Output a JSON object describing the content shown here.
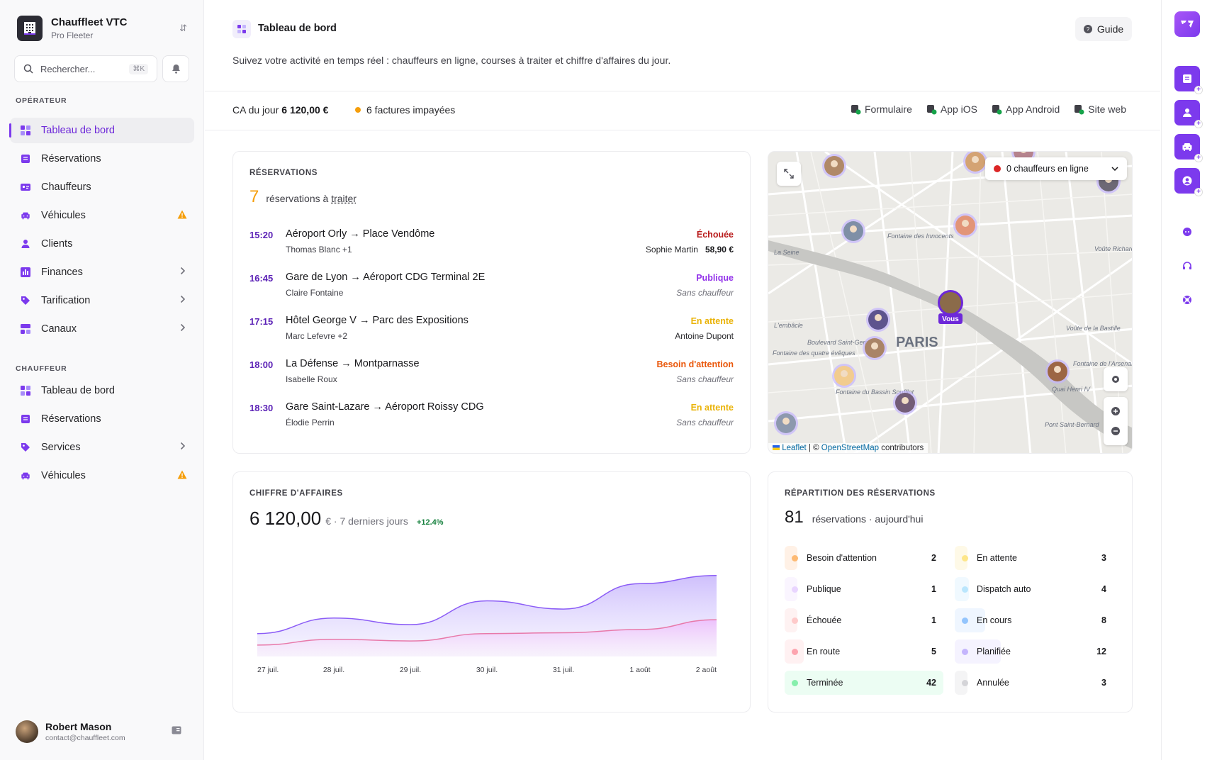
{
  "brand": {
    "name": "Chauffleet VTC",
    "subtitle": "Pro Fleeter"
  },
  "search": {
    "placeholder": "Rechercher...",
    "shortcut": "⌘K"
  },
  "sidebar": {
    "operator_title": "OPÉRATEUR",
    "operator_items": [
      {
        "label": "Tableau de bord",
        "icon": "dashboard-icon",
        "active": true
      },
      {
        "label": "Réservations",
        "icon": "list-icon"
      },
      {
        "label": "Chauffeurs",
        "icon": "id-card-icon"
      },
      {
        "label": "Véhicules",
        "icon": "car-icon",
        "warning": true
      },
      {
        "label": "Clients",
        "icon": "user-icon"
      },
      {
        "label": "Finances",
        "icon": "chart-icon",
        "chevron": true
      },
      {
        "label": "Tarification",
        "icon": "tag-icon",
        "chevron": true
      },
      {
        "label": "Canaux",
        "icon": "channels-icon",
        "chevron": true
      }
    ],
    "driver_title": "CHAUFFEUR",
    "driver_items": [
      {
        "label": "Tableau de bord",
        "icon": "dashboard-icon"
      },
      {
        "label": "Réservations",
        "icon": "list-icon"
      },
      {
        "label": "Services",
        "icon": "tag-icon",
        "chevron": true
      },
      {
        "label": "Véhicules",
        "icon": "car-icon",
        "warning": true
      }
    ]
  },
  "user": {
    "name": "Robert Mason",
    "email": "contact@chauffleet.com"
  },
  "header": {
    "title": "Tableau de bord",
    "guide": "Guide",
    "intro": "Suivez votre activité en temps réel : chauffeurs en ligne, courses à traiter et chiffre d'affaires du jour."
  },
  "stats": {
    "ca_label": "CA du jour",
    "ca_value": "6 120,00 €",
    "unpaid": "6 factures impayées",
    "links": [
      "Formulaire",
      "App iOS",
      "App Android",
      "Site web"
    ]
  },
  "reservations": {
    "title": "RÉSERVATIONS",
    "count": "7",
    "count_label_prefix": "réservations à",
    "count_label_link": "traiter",
    "rows": [
      {
        "time": "15:20",
        "route": "Aéroport Orly → Place Vendôme",
        "client": "Thomas Blanc +1",
        "status": "Échouée",
        "status_color": "#b91c1c",
        "driver": "Sophie Martin",
        "price": "58,90 €"
      },
      {
        "time": "16:45",
        "route": "Gare de Lyon → Aéroport CDG Terminal 2E",
        "client": "Claire Fontaine",
        "status": "Publique",
        "status_color": "#9333ea",
        "driver": "Sans chauffeur",
        "no_driver": true
      },
      {
        "time": "17:15",
        "route": "Hôtel George V → Parc des Expositions",
        "client": "Marc Lefevre +2",
        "status": "En attente",
        "status_color": "#eab308",
        "driver": "Antoine Dupont"
      },
      {
        "time": "18:00",
        "route": "La Défense → Montparnasse",
        "client": "Isabelle Roux",
        "status": "Besoin d'attention",
        "status_color": "#ea580c",
        "driver": "Sans chauffeur",
        "no_driver": true
      },
      {
        "time": "18:30",
        "route": "Gare Saint-Lazare → Aéroport Roissy CDG",
        "client": "Élodie Perrin",
        "status": "En attente",
        "status_color": "#eab308",
        "driver": "Sans chauffeur",
        "no_driver": true
      }
    ]
  },
  "map": {
    "drivers_online": "0 chauffeurs en ligne",
    "city_label": "PARIS",
    "you_label": "Vous",
    "place_labels": [
      "Fontaine des Innocents",
      "La Seine",
      "L'embâcle",
      "Boulevard Saint-Germain",
      "Fontaine des quatre évêques",
      "Fontaine du Bassin Soufflot",
      "Voûte de la Bastille",
      "Voûte Richard Lenoir",
      "Quai Henri IV",
      "Pont Saint-Bernard",
      "Fontaine de l'Arsenal"
    ],
    "attribution_leaflet": "Leaflet",
    "attribution_sep": "| ©",
    "attribution_osm": "OpenStreetMap",
    "attribution_suffix": "contributors"
  },
  "revenue": {
    "title": "CHIFFRE D'AFFAIRES",
    "value": "6 120,00",
    "unit": "€ · 7 derniers jours",
    "growth": "+12.4%"
  },
  "chart_data": {
    "type": "area",
    "categories": [
      "27 juil.",
      "28 juil.",
      "29 juil.",
      "30 juil.",
      "31 juil.",
      "1 août",
      "2 août"
    ],
    "series": [
      {
        "values": [
          280,
          470,
          390,
          680,
          580,
          890,
          990
        ],
        "color": "#a78bfa"
      },
      {
        "values": [
          140,
          210,
          190,
          280,
          290,
          330,
          450
        ],
        "color": "#f0abfc"
      }
    ],
    "ylim": [
      0,
      1300
    ],
    "grid": false
  },
  "distribution": {
    "title": "RÉPARTITION DES RÉSERVATIONS",
    "count": "81",
    "count_label": "réservations · aujourd'hui",
    "items": [
      {
        "label": "Besoin d'attention",
        "count": "2",
        "fraction": 0.05,
        "color": "#fdba74",
        "bg": "#fff1e6"
      },
      {
        "label": "En attente",
        "count": "3",
        "fraction": 0.07,
        "color": "#fde68a",
        "bg": "#fef9e7"
      },
      {
        "label": "Publique",
        "count": "1",
        "fraction": 0.02,
        "color": "#e9d5ff",
        "bg": "#faf5ff"
      },
      {
        "label": "Dispatch auto",
        "count": "4",
        "fraction": 0.09,
        "color": "#bae6fd",
        "bg": "#f0f9ff"
      },
      {
        "label": "Échouée",
        "count": "1",
        "fraction": 0.02,
        "color": "#fecaca",
        "bg": "#fef2f2"
      },
      {
        "label": "En cours",
        "count": "8",
        "fraction": 0.19,
        "color": "#93c5fd",
        "bg": "#eff6ff"
      },
      {
        "label": "En route",
        "count": "5",
        "fraction": 0.12,
        "color": "#fda4af",
        "bg": "#fff1f2"
      },
      {
        "label": "Planifiée",
        "count": "12",
        "fraction": 0.29,
        "color": "#c4b5fd",
        "bg": "#f5f3ff"
      },
      {
        "label": "Terminée",
        "count": "42",
        "fraction": 1.0,
        "color": "#86efac",
        "bg": "#ecfdf3"
      },
      {
        "label": "Annulée",
        "count": "3",
        "fraction": 0.07,
        "color": "#d4d4d8",
        "bg": "#f4f4f5"
      }
    ]
  },
  "colors": {
    "accent": "#7c3aed",
    "accent_dark": "#5b21b6",
    "warning": "#f59e0b"
  }
}
